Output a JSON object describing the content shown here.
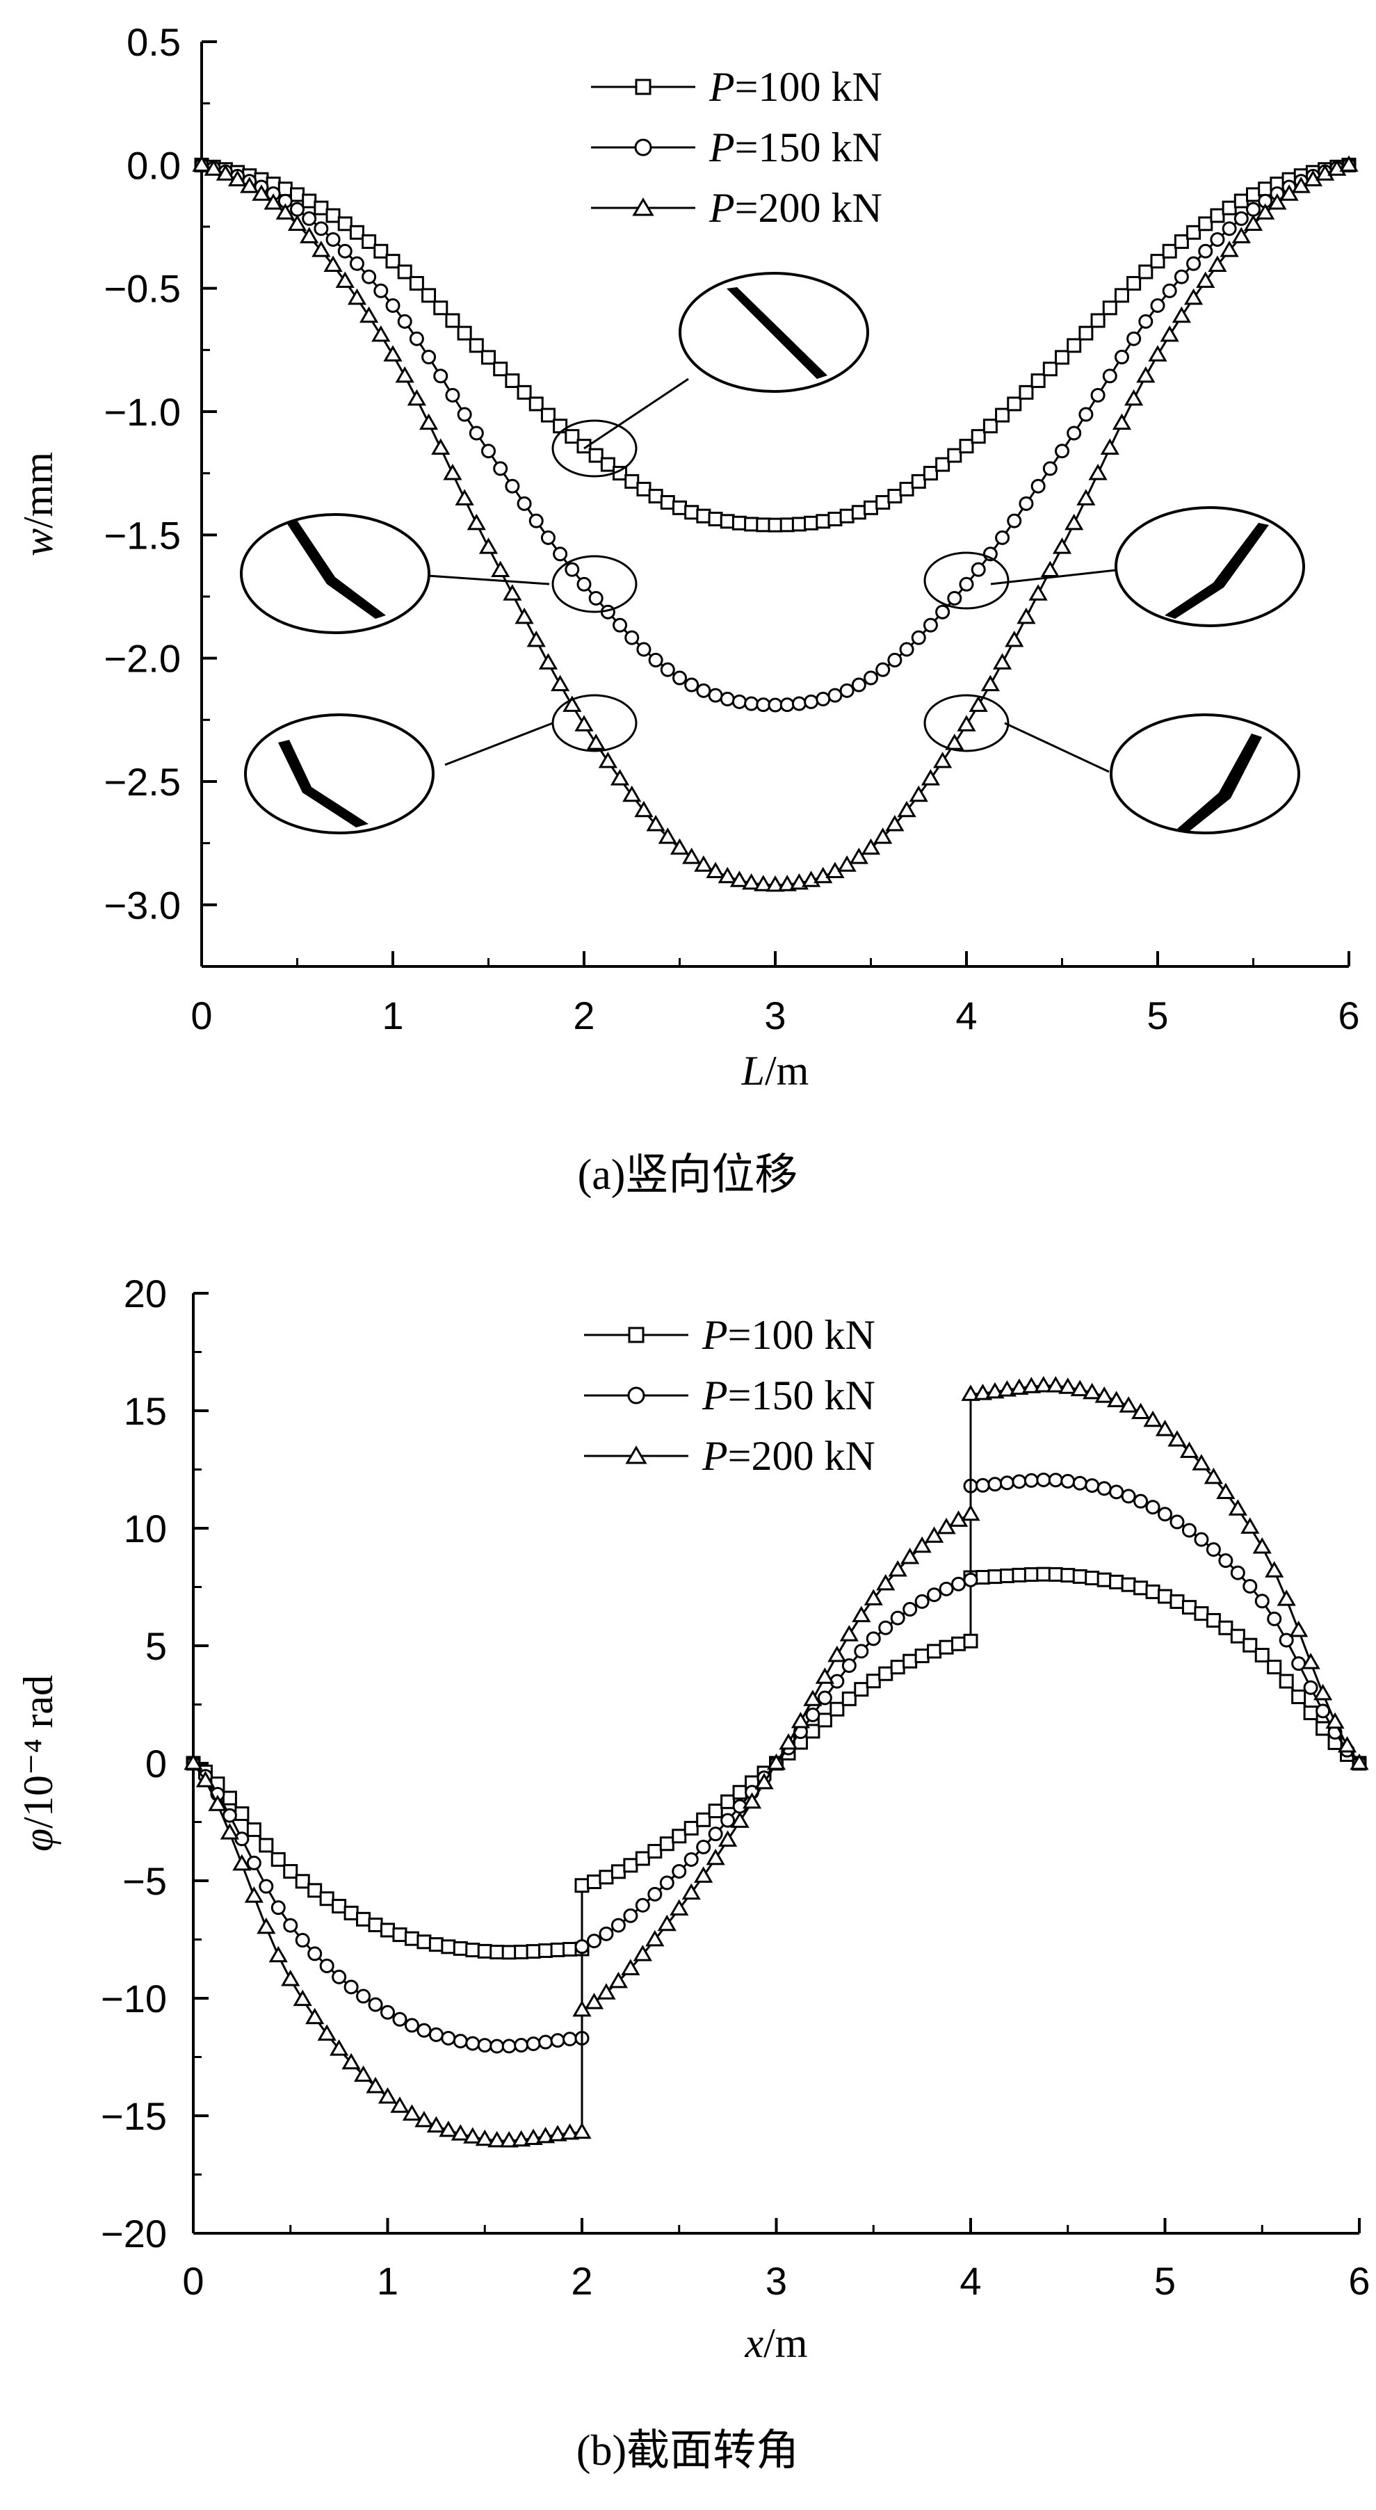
{
  "chart_data": [
    {
      "type": "line",
      "caption": "(a)竖向位移",
      "xlabel": "L/m",
      "ylabel": "w/mm",
      "xlim": [
        0,
        6
      ],
      "ylim": [
        -3.25,
        0.5
      ],
      "xticks": [
        0,
        1,
        2,
        3,
        4,
        5,
        6
      ],
      "yticks": [
        0.5,
        0.0,
        -0.5,
        -1.0,
        -1.5,
        -2.0,
        -2.5,
        -3.0
      ],
      "ytick_labels": [
        "0.5",
        "0.0",
        "−0.5",
        "−1.0",
        "−1.5",
        "−2.0",
        "−2.5",
        "−3.0"
      ],
      "legend_position": "top-center",
      "grid": false,
      "series": [
        {
          "name": "P=100 kN",
          "load": "P",
          "load_value": "=100 kN",
          "marker": "square",
          "x": [
            0,
            0.5,
            1.0,
            1.5,
            2.0,
            2.5,
            3.0,
            3.5,
            4.0,
            4.5,
            5.0,
            5.5,
            6.0
          ],
          "values": [
            0,
            -0.12,
            -0.39,
            -0.78,
            -1.14,
            -1.39,
            -1.46,
            -1.39,
            -1.14,
            -0.78,
            -0.39,
            -0.12,
            0
          ]
        },
        {
          "name": "P=150 kN",
          "load": "P",
          "load_value": "=150 kN",
          "marker": "circle",
          "x": [
            0,
            0.5,
            1.0,
            1.5,
            2.0,
            2.5,
            3.0,
            3.5,
            4.0,
            4.5,
            5.0,
            5.5,
            6.0
          ],
          "values": [
            0,
            -0.18,
            -0.57,
            -1.16,
            -1.7,
            -2.08,
            -2.19,
            -2.08,
            -1.7,
            -1.16,
            -0.57,
            -0.18,
            0
          ]
        },
        {
          "name": "P=200 kN",
          "load": "P",
          "load_value": "=200 kN",
          "marker": "triangle",
          "x": [
            0,
            0.5,
            1.0,
            1.5,
            2.0,
            2.5,
            3.0,
            3.5,
            4.0,
            4.5,
            5.0,
            5.5,
            6.0
          ],
          "values": [
            0,
            -0.24,
            -0.77,
            -1.55,
            -2.27,
            -2.77,
            -2.92,
            -2.77,
            -2.27,
            -1.55,
            -0.77,
            -0.24,
            0
          ]
        }
      ]
    },
    {
      "type": "line",
      "caption": "(b)截面转角",
      "xlabel": "x/m",
      "ylabel": "φ/10⁻⁴ rad",
      "xlim": [
        0,
        6
      ],
      "ylim": [
        -20,
        20
      ],
      "xticks": [
        0,
        1,
        2,
        3,
        4,
        5,
        6
      ],
      "yticks": [
        20,
        15,
        10,
        5,
        0,
        -5,
        -10,
        -15,
        -20
      ],
      "ytick_labels": [
        "20",
        "15",
        "10",
        "5",
        "0",
        "−5",
        "−10",
        "−15",
        "−20"
      ],
      "legend_position": "top-center",
      "grid": false,
      "series": [
        {
          "name": "P=100 kN",
          "load": "P",
          "load_value": "=100 kN",
          "marker": "square",
          "x": [
            0,
            0.5,
            1.0,
            1.5,
            2.0,
            2.0,
            2.5,
            3.0,
            3.5,
            4.0,
            4.0,
            4.5,
            5.0,
            5.5,
            6.0
          ],
          "values": [
            0,
            -4.6,
            -7.1,
            -8.0,
            -7.9,
            -5.2,
            -3.1,
            0,
            3.5,
            5.2,
            7.9,
            8.0,
            7.1,
            4.6,
            0
          ]
        },
        {
          "name": "P=150 kN",
          "load": "P",
          "load_value": "=150 kN",
          "marker": "circle",
          "x": [
            0,
            0.5,
            1.0,
            1.5,
            2.0,
            2.0,
            2.5,
            3.0,
            3.5,
            4.0,
            4.0,
            4.5,
            5.0,
            5.5,
            6.0
          ],
          "values": [
            0,
            -6.9,
            -10.6,
            -12.0,
            -11.7,
            -7.8,
            -4.6,
            0,
            5.3,
            7.8,
            11.8,
            12.0,
            10.6,
            6.9,
            0
          ]
        },
        {
          "name": "P=200 kN",
          "load": "P",
          "load_value": "=200 kN",
          "marker": "triangle",
          "x": [
            0,
            0.5,
            1.0,
            1.5,
            2.0,
            2.0,
            2.5,
            3.0,
            3.5,
            4.0,
            4.0,
            4.5,
            5.0,
            5.5,
            6.0
          ],
          "values": [
            0,
            -9.2,
            -14.2,
            -16.0,
            -15.7,
            -10.5,
            -6.2,
            0,
            7.0,
            10.6,
            15.7,
            16.0,
            14.2,
            9.2,
            0
          ]
        }
      ]
    }
  ]
}
